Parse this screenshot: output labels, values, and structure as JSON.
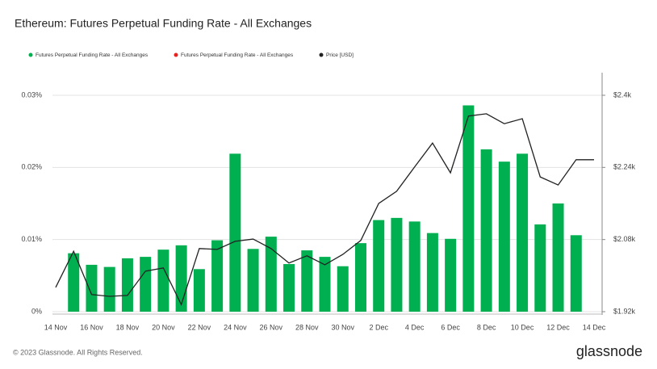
{
  "chart_data": {
    "type": "bar_line",
    "title": "Ethereum: Futures Perpetual Funding Rate - All Exchanges",
    "categories": [
      "14 Nov",
      null,
      "16 Nov",
      null,
      "18 Nov",
      null,
      "20 Nov",
      null,
      "22 Nov",
      null,
      "24 Nov",
      null,
      "26 Nov",
      null,
      "28 Nov",
      null,
      "30 Nov",
      null,
      "2 Dec",
      null,
      "4 Dec",
      null,
      "6 Dec",
      null,
      "8 Dec",
      null,
      "10 Dec",
      null,
      "12 Dec",
      null,
      "14 Dec"
    ],
    "series": [
      {
        "name": "Futures Perpetual Funding Rate - All Exchanges",
        "color": "#00b050",
        "kind": "bar",
        "values": [
          null,
          0.0081,
          0.0065,
          0.0062,
          0.0074,
          0.0076,
          0.0086,
          0.0092,
          0.0059,
          0.0099,
          0.0219,
          0.0087,
          0.0104,
          0.0066,
          0.0085,
          0.0076,
          0.0063,
          0.0095,
          0.0127,
          0.013,
          0.0125,
          0.0109,
          0.0101,
          0.0286,
          0.0225,
          0.0208,
          0.0219,
          0.0121,
          0.015,
          0.0106,
          null
        ]
      },
      {
        "name": "Futures Perpetual Funding Rate - All Exchanges",
        "color": "#e8231f",
        "kind": "bar",
        "values": [
          null,
          null,
          null,
          null,
          null,
          null,
          null,
          null,
          null,
          null,
          null,
          null,
          null,
          null,
          null,
          null,
          null,
          null,
          null,
          null,
          null,
          null,
          null,
          null,
          null,
          null,
          null,
          null,
          null,
          null,
          null
        ]
      },
      {
        "name": "Price [USD]",
        "color": "#222222",
        "kind": "line",
        "axis": "y2",
        "values": [
          1974,
          2054,
          1958,
          1954,
          1956,
          2010,
          2017,
          1936,
          2060,
          2058,
          2076,
          2081,
          2060,
          2028,
          2044,
          2024,
          2047,
          2078,
          2160,
          2187,
          2241,
          2294,
          2228,
          2354,
          2359,
          2337,
          2348,
          2219,
          2201,
          2257,
          2257
        ]
      }
    ],
    "ylim": [
      0,
      0.03
    ],
    "yticks": [
      {
        "value": 0,
        "label": "0%"
      },
      {
        "value": 0.01,
        "label": "0.01%"
      },
      {
        "value": 0.02,
        "label": "0.02%"
      },
      {
        "value": 0.03,
        "label": "0.03%"
      }
    ],
    "y2lim": [
      1920,
      2400
    ],
    "y2ticks": [
      {
        "value": 1920,
        "label": "$1.92k"
      },
      {
        "value": 2080,
        "label": "$2.08k"
      },
      {
        "value": 2240,
        "label": "$2.24k"
      },
      {
        "value": 2400,
        "label": "$2.4k"
      }
    ],
    "grid": true,
    "footer": "© 2023 Glassnode. All Rights Reserved.",
    "logo": "glassnode"
  }
}
